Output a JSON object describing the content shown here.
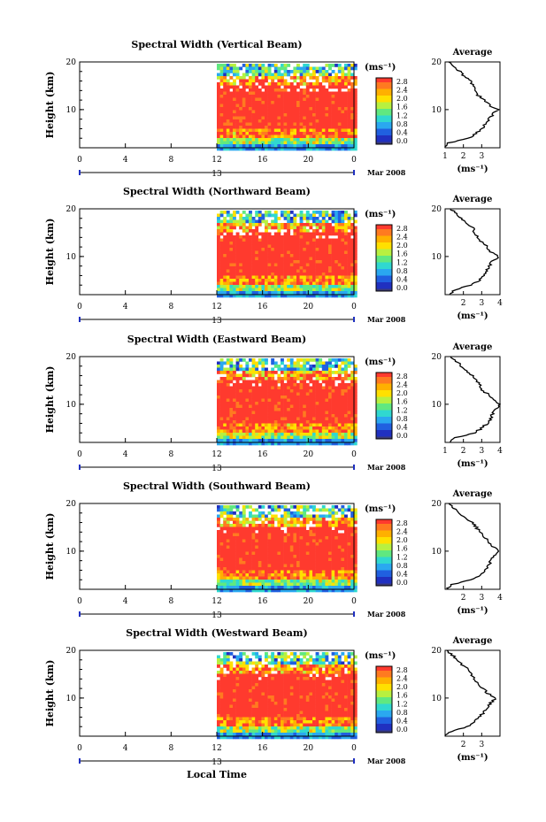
{
  "figure": {
    "xlabel": "Local Time",
    "date_label": "Mar 2008",
    "day_marker": "13",
    "ylabel": "Height (km)",
    "average_title": "Average",
    "units": "(ms⁻¹)",
    "avg_xlabel": "(ms⁻¹)"
  },
  "colorbar": {
    "ticks": [
      "2.8",
      "2.4",
      "2.0",
      "1.6",
      "1.2",
      "0.8",
      "0.4",
      "0.0"
    ],
    "colors": [
      "#ff3a2e",
      "#ff7a20",
      "#ffb000",
      "#ffe000",
      "#b8f040",
      "#60e880",
      "#30d8d0",
      "#2aa8f0",
      "#2060e0",
      "#2030c0",
      "#3a3a78"
    ]
  },
  "chart_data": [
    {
      "type": "heatmap",
      "title": "Spectral Width (Vertical Beam)",
      "x_ticks": [
        "0",
        "4",
        "8",
        "12",
        "16",
        "20",
        "0"
      ],
      "y_ticks": [
        "20",
        "10"
      ],
      "xlim": [
        0,
        24
      ],
      "ylim": [
        2,
        20
      ],
      "data_start_hour": 12,
      "average": {
        "x_ticks": [
          "1",
          "2",
          "3"
        ],
        "xlim": [
          1,
          4
        ],
        "height": [
          2,
          3,
          4,
          5,
          6,
          7,
          8,
          9,
          10,
          11,
          12,
          13,
          14,
          15,
          16,
          17,
          18,
          19,
          20
        ],
        "width": [
          1.0,
          1.2,
          2.3,
          2.7,
          3.0,
          3.2,
          3.4,
          3.6,
          3.9,
          3.4,
          3.2,
          2.8,
          2.7,
          2.5,
          2.4,
          2.0,
          1.8,
          1.5,
          1.2
        ]
      }
    },
    {
      "type": "heatmap",
      "title": "Spectral Width (Northward Beam)",
      "x_ticks": [
        "0",
        "4",
        "8",
        "12",
        "16",
        "20",
        "0"
      ],
      "y_ticks": [
        "20",
        "10"
      ],
      "xlim": [
        0,
        24
      ],
      "ylim": [
        2,
        20
      ],
      "data_start_hour": 12,
      "average": {
        "x_ticks": [
          "2",
          "3",
          "4"
        ],
        "xlim": [
          1,
          4
        ],
        "height": [
          2,
          3,
          4,
          5,
          6,
          7,
          8,
          9,
          10,
          11,
          12,
          13,
          14,
          15,
          16,
          17,
          18,
          19,
          20
        ],
        "width": [
          1.2,
          1.5,
          2.4,
          2.9,
          3.1,
          3.3,
          3.4,
          3.6,
          3.9,
          3.5,
          3.3,
          3.0,
          2.8,
          2.6,
          2.5,
          2.1,
          1.9,
          1.6,
          1.3
        ]
      }
    },
    {
      "type": "heatmap",
      "title": "Spectral Width (Eastward Beam)",
      "x_ticks": [
        "0",
        "4",
        "8",
        "12",
        "16",
        "20",
        "0"
      ],
      "y_ticks": [
        "20",
        "10"
      ],
      "xlim": [
        0,
        24
      ],
      "ylim": [
        2,
        20
      ],
      "data_start_hour": 12,
      "average": {
        "x_ticks": [
          "1",
          "2",
          "3",
          "4"
        ],
        "xlim": [
          1,
          4
        ],
        "height": [
          2,
          3,
          4,
          5,
          6,
          7,
          8,
          9,
          10,
          11,
          12,
          13,
          14,
          15,
          16,
          17,
          18,
          19,
          20
        ],
        "width": [
          1.2,
          1.6,
          2.6,
          3.0,
          3.3,
          3.5,
          3.6,
          3.8,
          4.0,
          3.6,
          3.4,
          3.0,
          2.9,
          2.7,
          2.5,
          2.2,
          1.9,
          1.6,
          1.3
        ]
      }
    },
    {
      "type": "heatmap",
      "title": "Spectral Width (Southward Beam)",
      "x_ticks": [
        "0",
        "4",
        "8",
        "12",
        "16",
        "20",
        "0"
      ],
      "y_ticks": [
        "20",
        "10"
      ],
      "xlim": [
        0,
        24
      ],
      "ylim": [
        2,
        20
      ],
      "data_start_hour": 12,
      "average": {
        "x_ticks": [
          "2",
          "3",
          "4"
        ],
        "xlim": [
          1,
          4
        ],
        "height": [
          2,
          3,
          4,
          5,
          6,
          7,
          8,
          9,
          10,
          11,
          12,
          13,
          14,
          15,
          16,
          17,
          18,
          19,
          20
        ],
        "width": [
          1.1,
          1.4,
          2.4,
          2.9,
          3.2,
          3.4,
          3.5,
          3.7,
          4.0,
          3.6,
          3.4,
          3.1,
          2.9,
          2.7,
          2.5,
          2.1,
          1.8,
          1.5,
          1.2
        ]
      }
    },
    {
      "type": "heatmap",
      "title": "Spectral Width (Westward Beam)",
      "x_ticks": [
        "0",
        "4",
        "8",
        "12",
        "16",
        "20",
        "0"
      ],
      "y_ticks": [
        "20",
        "10"
      ],
      "xlim": [
        0,
        24
      ],
      "ylim": [
        2,
        20
      ],
      "data_start_hour": 12,
      "average": {
        "x_ticks": [
          "2",
          "3"
        ],
        "xlim": [
          1,
          4
        ],
        "height": [
          2,
          3,
          4,
          5,
          6,
          7,
          8,
          9,
          10,
          11,
          12,
          13,
          14,
          15,
          16,
          17,
          18,
          19,
          20
        ],
        "width": [
          1.0,
          1.3,
          2.2,
          2.6,
          2.9,
          3.1,
          3.3,
          3.5,
          3.8,
          3.3,
          3.1,
          2.8,
          2.6,
          2.4,
          2.3,
          1.9,
          1.7,
          1.4,
          1.1
        ]
      }
    }
  ]
}
